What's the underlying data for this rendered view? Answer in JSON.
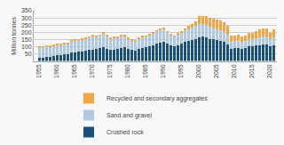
{
  "chart_data": {
    "type": "bar",
    "stacked": true,
    "x": [
      1955,
      1956,
      1957,
      1958,
      1959,
      1960,
      1961,
      1962,
      1963,
      1964,
      1965,
      1966,
      1967,
      1968,
      1969,
      1970,
      1971,
      1972,
      1973,
      1974,
      1975,
      1976,
      1977,
      1978,
      1979,
      1980,
      1981,
      1982,
      1983,
      1984,
      1985,
      1986,
      1987,
      1988,
      1989,
      1990,
      1991,
      1992,
      1993,
      1994,
      1995,
      1996,
      1997,
      1998,
      1999,
      2000,
      2001,
      2002,
      2003,
      2004,
      2005,
      2006,
      2007,
      2008,
      2009,
      2010,
      2011,
      2012,
      2013,
      2014,
      2015,
      2016,
      2017,
      2018,
      2019,
      2020,
      2021
    ],
    "series": [
      {
        "name": "Crushed rock",
        "color": "#1a4f7a",
        "values": [
          20,
          25,
          28,
          30,
          35,
          40,
          42,
          45,
          48,
          57,
          60,
          63,
          65,
          70,
          75,
          80,
          82,
          88,
          95,
          85,
          78,
          80,
          83,
          93,
          95,
          85,
          76,
          72,
          85,
          93,
          96,
          100,
          108,
          120,
          130,
          135,
          122,
          110,
          105,
          112,
          123,
          132,
          140,
          145,
          155,
          165,
          168,
          165,
          155,
          150,
          145,
          140,
          133,
          118,
          85,
          90,
          93,
          87,
          93,
          102,
          102,
          107,
          112,
          115,
          115,
          100,
          112
        ]
      },
      {
        "name": "Sand and gravel",
        "color": "#b0c8e0",
        "values": [
          72,
          72,
          75,
          68,
          72,
          75,
          72,
          72,
          72,
          80,
          83,
          83,
          87,
          88,
          90,
          95,
          88,
          90,
          98,
          88,
          80,
          80,
          78,
          83,
          80,
          72,
          66,
          68,
          72,
          75,
          75,
          80,
          83,
          88,
          90,
          88,
          80,
          72,
          66,
          75,
          75,
          80,
          83,
          87,
          88,
          95,
          90,
          88,
          83,
          80,
          78,
          75,
          72,
          66,
          50,
          50,
          50,
          46,
          46,
          50,
          53,
          53,
          55,
          57,
          57,
          50,
          55
        ]
      },
      {
        "name": "Recycled and secondary aggregates",
        "color": "#f5a444",
        "values": [
          5,
          5,
          5,
          5,
          5,
          5,
          5,
          5,
          5,
          5,
          5,
          5,
          5,
          5,
          5,
          5,
          5,
          5,
          5,
          5,
          5,
          5,
          5,
          5,
          5,
          5,
          5,
          5,
          5,
          5,
          5,
          5,
          5,
          5,
          5,
          5,
          5,
          5,
          5,
          10,
          12,
          15,
          22,
          28,
          35,
          50,
          55,
          58,
          62,
          65,
          65,
          65,
          65,
          60,
          42,
          40,
          40,
          38,
          38,
          42,
          43,
          47,
          52,
          55,
          55,
          45,
          52
        ]
      }
    ],
    "xlim": [
      1953.5,
      2022
    ],
    "xticks": [
      1955,
      1960,
      1965,
      1970,
      1975,
      1980,
      1985,
      1990,
      1995,
      2000,
      2005,
      2010,
      2015,
      2020
    ],
    "ylim": [
      0,
      350
    ],
    "yticks": [
      50,
      100,
      150,
      200,
      250,
      300,
      350
    ],
    "ylabel": "Million tonnes",
    "grid": true,
    "legend": "bottom"
  }
}
